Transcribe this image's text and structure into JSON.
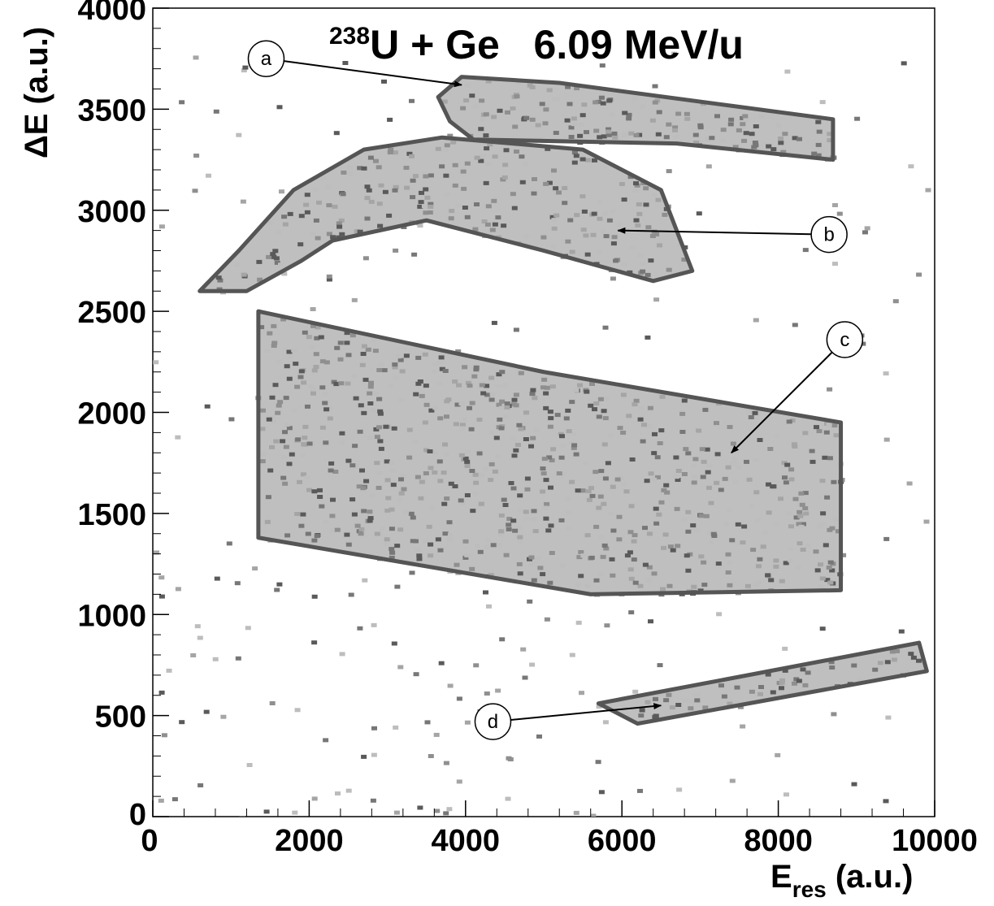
{
  "chart_data": {
    "type": "heatmap",
    "title": {
      "superscript": "238",
      "main": "U + Ge   6.09 MeV/u"
    },
    "xlabel": {
      "main": "E",
      "sub": "res",
      "rest": " (a.u.)"
    },
    "ylabel": "ΔE (a.u.)",
    "xlim": [
      0,
      10000
    ],
    "ylim": [
      0,
      4000
    ],
    "xticks": [
      0,
      2000,
      4000,
      6000,
      8000,
      10000
    ],
    "yticks": [
      0,
      500,
      1000,
      1500,
      2000,
      2500,
      3000,
      3500,
      4000
    ],
    "xtick_labels": [
      "0",
      "2000",
      "4000",
      "6000",
      "8000",
      "10000"
    ],
    "ytick_labels": [
      "0",
      "500",
      "1000",
      "1500",
      "2000",
      "2500",
      "3000",
      "3500",
      "4000"
    ],
    "colors": {
      "gate": "#555555",
      "density": "#8a8a8a",
      "background": "#ffffff"
    },
    "gates": [
      {
        "name": "a",
        "points": [
          [
            3650,
            3560
          ],
          [
            3950,
            3660
          ],
          [
            5200,
            3630
          ],
          [
            8700,
            3450
          ],
          [
            8700,
            3250
          ],
          [
            6700,
            3330
          ],
          [
            4100,
            3350
          ],
          [
            3800,
            3440
          ]
        ]
      },
      {
        "name": "b",
        "points": [
          [
            600,
            2600
          ],
          [
            1100,
            2800
          ],
          [
            1800,
            3100
          ],
          [
            2700,
            3300
          ],
          [
            3700,
            3360
          ],
          [
            5500,
            3300
          ],
          [
            6500,
            3100
          ],
          [
            6900,
            2700
          ],
          [
            6400,
            2650
          ],
          [
            5000,
            2800
          ],
          [
            3500,
            2950
          ],
          [
            2300,
            2850
          ],
          [
            1900,
            2750
          ],
          [
            1200,
            2600
          ]
        ]
      },
      {
        "name": "c",
        "points": [
          [
            1350,
            2500
          ],
          [
            5000,
            2200
          ],
          [
            8800,
            1950
          ],
          [
            8800,
            1120
          ],
          [
            5600,
            1100
          ],
          [
            1350,
            1380
          ]
        ]
      },
      {
        "name": "d",
        "points": [
          [
            5700,
            560
          ],
          [
            9800,
            860
          ],
          [
            9900,
            720
          ],
          [
            6200,
            460
          ]
        ]
      }
    ],
    "annotations": [
      {
        "label": "a",
        "x": 1450,
        "y": 3750,
        "arrow_to": [
          3950,
          3620
        ]
      },
      {
        "label": "b",
        "x": 8650,
        "y": 2880,
        "arrow_to": [
          5950,
          2900
        ]
      },
      {
        "label": "c",
        "x": 8850,
        "y": 2360,
        "arrow_to": [
          7400,
          1800
        ]
      },
      {
        "label": "d",
        "x": 4350,
        "y": 470,
        "arrow_to": [
          6500,
          550
        ]
      }
    ]
  }
}
